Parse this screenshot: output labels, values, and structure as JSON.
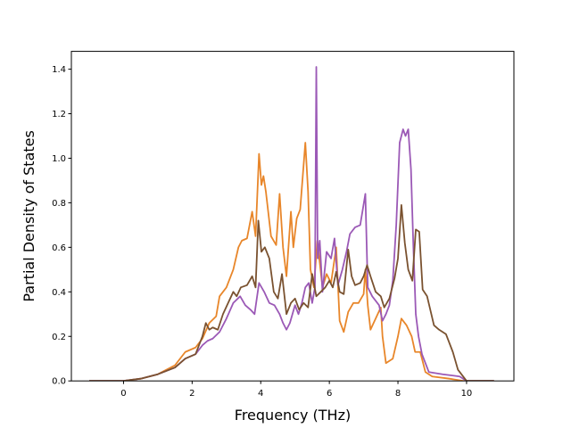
{
  "chart_data": {
    "type": "line",
    "title": "",
    "xlabel": "Frequency (THz)",
    "ylabel": "Partial Density of States",
    "xlim": [
      -1.52,
      11.38
    ],
    "ylim": [
      0,
      1.48
    ],
    "xticks": [
      0,
      2,
      4,
      6,
      8,
      10
    ],
    "yticks": [
      0.0,
      0.2,
      0.4,
      0.6,
      0.8,
      1.0,
      1.2,
      1.4
    ],
    "xtick_labels": [
      "0",
      "2",
      "4",
      "6",
      "8",
      "10"
    ],
    "ytick_labels": [
      "0.0",
      "0.2",
      "0.4",
      "0.6",
      "0.8",
      "1.0",
      "1.2",
      "1.4"
    ],
    "grid": false,
    "series": [
      {
        "color": "#e8862a",
        "points": [
          [
            -1.0,
            0.0
          ],
          [
            0.0,
            0.0
          ],
          [
            0.5,
            0.01
          ],
          [
            1.0,
            0.03
          ],
          [
            1.5,
            0.07
          ],
          [
            1.8,
            0.13
          ],
          [
            2.1,
            0.15
          ],
          [
            2.3,
            0.19
          ],
          [
            2.5,
            0.26
          ],
          [
            2.7,
            0.29
          ],
          [
            2.8,
            0.38
          ],
          [
            3.0,
            0.42
          ],
          [
            3.2,
            0.5
          ],
          [
            3.35,
            0.6
          ],
          [
            3.45,
            0.63
          ],
          [
            3.6,
            0.64
          ],
          [
            3.75,
            0.76
          ],
          [
            3.85,
            0.65
          ],
          [
            3.95,
            1.02
          ],
          [
            4.02,
            0.88
          ],
          [
            4.08,
            0.92
          ],
          [
            4.15,
            0.85
          ],
          [
            4.3,
            0.65
          ],
          [
            4.45,
            0.61
          ],
          [
            4.55,
            0.84
          ],
          [
            4.65,
            0.6
          ],
          [
            4.75,
            0.47
          ],
          [
            4.88,
            0.76
          ],
          [
            4.95,
            0.6
          ],
          [
            5.05,
            0.73
          ],
          [
            5.15,
            0.77
          ],
          [
            5.3,
            1.07
          ],
          [
            5.38,
            0.85
          ],
          [
            5.45,
            0.5
          ],
          [
            5.55,
            0.42
          ],
          [
            5.65,
            0.63
          ],
          [
            5.8,
            0.42
          ],
          [
            5.92,
            0.48
          ],
          [
            6.05,
            0.44
          ],
          [
            6.2,
            0.6
          ],
          [
            6.3,
            0.27
          ],
          [
            6.42,
            0.22
          ],
          [
            6.55,
            0.31
          ],
          [
            6.7,
            0.35
          ],
          [
            6.85,
            0.35
          ],
          [
            7.0,
            0.39
          ],
          [
            7.05,
            0.5
          ],
          [
            7.12,
            0.34
          ],
          [
            7.2,
            0.23
          ],
          [
            7.35,
            0.28
          ],
          [
            7.5,
            0.33
          ],
          [
            7.55,
            0.2
          ],
          [
            7.65,
            0.08
          ],
          [
            7.85,
            0.1
          ],
          [
            8.0,
            0.2
          ],
          [
            8.1,
            0.28
          ],
          [
            8.25,
            0.25
          ],
          [
            8.4,
            0.2
          ],
          [
            8.5,
            0.13
          ],
          [
            8.65,
            0.13
          ],
          [
            8.8,
            0.04
          ],
          [
            9.0,
            0.02
          ],
          [
            9.5,
            0.01
          ],
          [
            9.9,
            0.0
          ],
          [
            10.8,
            0.0
          ]
        ]
      },
      {
        "color": "#9b59b6",
        "points": [
          [
            -1.0,
            0.0
          ],
          [
            0.0,
            0.0
          ],
          [
            0.5,
            0.01
          ],
          [
            1.0,
            0.03
          ],
          [
            1.5,
            0.06
          ],
          [
            1.8,
            0.1
          ],
          [
            2.1,
            0.12
          ],
          [
            2.3,
            0.16
          ],
          [
            2.45,
            0.18
          ],
          [
            2.6,
            0.19
          ],
          [
            2.8,
            0.22
          ],
          [
            3.0,
            0.28
          ],
          [
            3.2,
            0.35
          ],
          [
            3.4,
            0.38
          ],
          [
            3.55,
            0.34
          ],
          [
            3.7,
            0.32
          ],
          [
            3.82,
            0.3
          ],
          [
            3.95,
            0.44
          ],
          [
            4.1,
            0.4
          ],
          [
            4.25,
            0.35
          ],
          [
            4.4,
            0.34
          ],
          [
            4.55,
            0.3
          ],
          [
            4.65,
            0.26
          ],
          [
            4.75,
            0.23
          ],
          [
            4.85,
            0.26
          ],
          [
            5.0,
            0.34
          ],
          [
            5.1,
            0.3
          ],
          [
            5.2,
            0.35
          ],
          [
            5.3,
            0.42
          ],
          [
            5.4,
            0.44
          ],
          [
            5.5,
            0.35
          ],
          [
            5.58,
            0.42
          ],
          [
            5.62,
            1.41
          ],
          [
            5.66,
            0.55
          ],
          [
            5.72,
            0.63
          ],
          [
            5.8,
            0.4
          ],
          [
            5.92,
            0.58
          ],
          [
            6.05,
            0.55
          ],
          [
            6.15,
            0.64
          ],
          [
            6.25,
            0.43
          ],
          [
            6.38,
            0.5
          ],
          [
            6.5,
            0.58
          ],
          [
            6.6,
            0.66
          ],
          [
            6.75,
            0.69
          ],
          [
            6.9,
            0.7
          ],
          [
            7.05,
            0.84
          ],
          [
            7.12,
            0.42
          ],
          [
            7.25,
            0.38
          ],
          [
            7.45,
            0.34
          ],
          [
            7.55,
            0.27
          ],
          [
            7.65,
            0.3
          ],
          [
            7.75,
            0.34
          ],
          [
            7.85,
            0.45
          ],
          [
            7.95,
            0.7
          ],
          [
            8.05,
            1.07
          ],
          [
            8.15,
            1.13
          ],
          [
            8.22,
            1.1
          ],
          [
            8.3,
            1.13
          ],
          [
            8.38,
            0.95
          ],
          [
            8.45,
            0.6
          ],
          [
            8.52,
            0.3
          ],
          [
            8.6,
            0.2
          ],
          [
            8.7,
            0.12
          ],
          [
            8.9,
            0.04
          ],
          [
            9.3,
            0.03
          ],
          [
            9.8,
            0.02
          ],
          [
            10.0,
            0.0
          ],
          [
            10.8,
            0.0
          ]
        ]
      },
      {
        "color": "#7a5230",
        "points": [
          [
            -1.0,
            0.0
          ],
          [
            0.0,
            0.0
          ],
          [
            0.5,
            0.01
          ],
          [
            1.0,
            0.03
          ],
          [
            1.5,
            0.06
          ],
          [
            1.8,
            0.1
          ],
          [
            2.1,
            0.12
          ],
          [
            2.3,
            0.2
          ],
          [
            2.4,
            0.26
          ],
          [
            2.5,
            0.23
          ],
          [
            2.6,
            0.24
          ],
          [
            2.75,
            0.23
          ],
          [
            2.9,
            0.3
          ],
          [
            3.05,
            0.35
          ],
          [
            3.2,
            0.4
          ],
          [
            3.3,
            0.38
          ],
          [
            3.42,
            0.42
          ],
          [
            3.6,
            0.43
          ],
          [
            3.75,
            0.47
          ],
          [
            3.85,
            0.42
          ],
          [
            3.93,
            0.72
          ],
          [
            4.02,
            0.58
          ],
          [
            4.12,
            0.6
          ],
          [
            4.25,
            0.55
          ],
          [
            4.38,
            0.4
          ],
          [
            4.5,
            0.37
          ],
          [
            4.62,
            0.48
          ],
          [
            4.75,
            0.3
          ],
          [
            4.88,
            0.35
          ],
          [
            5.0,
            0.37
          ],
          [
            5.12,
            0.32
          ],
          [
            5.25,
            0.35
          ],
          [
            5.38,
            0.33
          ],
          [
            5.5,
            0.48
          ],
          [
            5.62,
            0.38
          ],
          [
            5.75,
            0.4
          ],
          [
            5.88,
            0.42
          ],
          [
            6.0,
            0.45
          ],
          [
            6.1,
            0.42
          ],
          [
            6.2,
            0.49
          ],
          [
            6.3,
            0.4
          ],
          [
            6.42,
            0.39
          ],
          [
            6.55,
            0.59
          ],
          [
            6.65,
            0.47
          ],
          [
            6.75,
            0.43
          ],
          [
            6.9,
            0.44
          ],
          [
            7.0,
            0.47
          ],
          [
            7.1,
            0.52
          ],
          [
            7.2,
            0.47
          ],
          [
            7.35,
            0.4
          ],
          [
            7.5,
            0.38
          ],
          [
            7.6,
            0.33
          ],
          [
            7.75,
            0.37
          ],
          [
            7.9,
            0.46
          ],
          [
            8.0,
            0.55
          ],
          [
            8.1,
            0.79
          ],
          [
            8.2,
            0.62
          ],
          [
            8.3,
            0.5
          ],
          [
            8.42,
            0.45
          ],
          [
            8.52,
            0.68
          ],
          [
            8.62,
            0.67
          ],
          [
            8.72,
            0.41
          ],
          [
            8.85,
            0.38
          ],
          [
            9.05,
            0.25
          ],
          [
            9.2,
            0.23
          ],
          [
            9.4,
            0.21
          ],
          [
            9.6,
            0.13
          ],
          [
            9.75,
            0.05
          ],
          [
            9.9,
            0.02
          ],
          [
            10.0,
            0.0
          ],
          [
            10.8,
            0.0
          ]
        ]
      }
    ]
  }
}
